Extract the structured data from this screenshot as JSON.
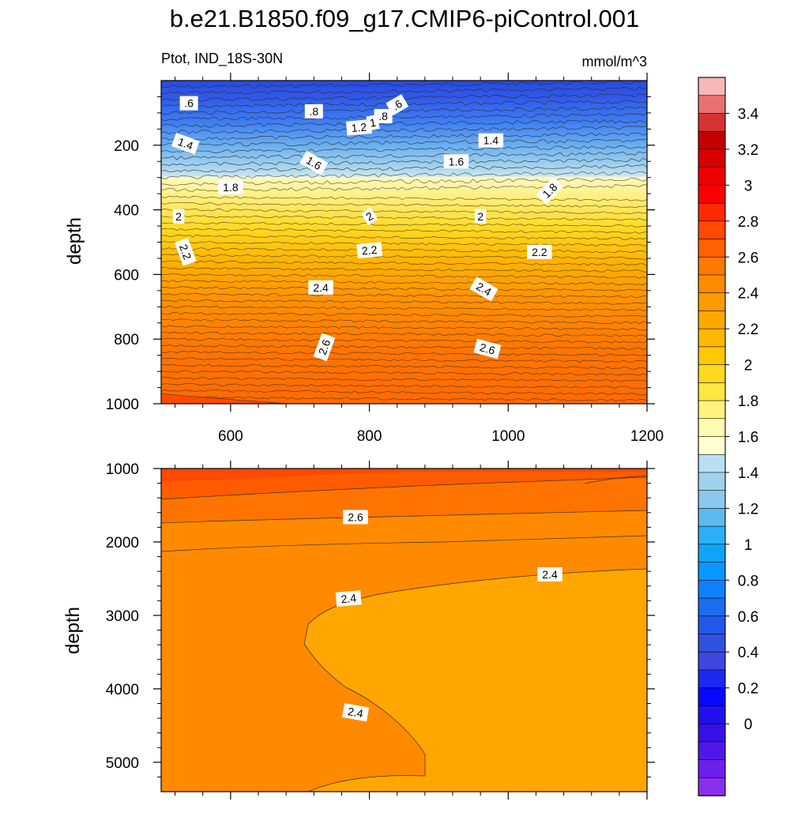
{
  "figure": {
    "title": "b.e21.B1850.f09_g17.CMIP6-piControl.001",
    "left_subtitle": "Ptot, IND_18S-30N",
    "right_subtitle": "mmol/m^3"
  },
  "chart_data": [
    {
      "type": "contour",
      "panel": "upper",
      "ylabel": "depth",
      "xlabel": "",
      "xlim": [
        500,
        1200
      ],
      "ylim": [
        1000,
        0
      ],
      "x_ticks": [
        "600",
        "800",
        "1000",
        "1200"
      ],
      "y_ticks": [
        "200",
        "400",
        "600",
        "800",
        "1000"
      ],
      "x_tick_values": [
        600,
        800,
        1000,
        1200
      ],
      "y_tick_values": [
        200,
        400,
        600,
        800,
        1000
      ],
      "contour_interval": 0.1,
      "contour_labels": [
        {
          "text": ".6",
          "x": 540,
          "y": 70
        },
        {
          "text": ".8",
          "x": 720,
          "y": 95
        },
        {
          "text": "1.2",
          "x": 785,
          "y": 145
        },
        {
          "text": "1",
          "x": 805,
          "y": 130
        },
        {
          "text": ".8",
          "x": 820,
          "y": 110
        },
        {
          "text": ".6",
          "x": 840,
          "y": 75
        },
        {
          "text": "1.4",
          "x": 535,
          "y": 195
        },
        {
          "text": "1.4",
          "x": 975,
          "y": 185
        },
        {
          "text": "1.6",
          "x": 720,
          "y": 255
        },
        {
          "text": "1.6",
          "x": 925,
          "y": 250
        },
        {
          "text": "1.8",
          "x": 600,
          "y": 330
        },
        {
          "text": "1.8",
          "x": 1060,
          "y": 340
        },
        {
          "text": "2",
          "x": 525,
          "y": 420
        },
        {
          "text": "2",
          "x": 800,
          "y": 420
        },
        {
          "text": "2",
          "x": 960,
          "y": 420
        },
        {
          "text": "2.2",
          "x": 535,
          "y": 530
        },
        {
          "text": "2.2",
          "x": 800,
          "y": 525
        },
        {
          "text": "2.2",
          "x": 1045,
          "y": 530
        },
        {
          "text": "2.4",
          "x": 730,
          "y": 640
        },
        {
          "text": "2.4",
          "x": 965,
          "y": 645
        },
        {
          "text": "2.6",
          "x": 735,
          "y": 825
        },
        {
          "text": "2.6",
          "x": 970,
          "y": 830
        }
      ],
      "levels_by_depth": [
        {
          "depth": 0,
          "value": 0.45
        },
        {
          "depth": 40,
          "value": 0.55
        },
        {
          "depth": 60,
          "value": 0.6
        },
        {
          "depth": 100,
          "value": 0.9
        },
        {
          "depth": 140,
          "value": 1.2
        },
        {
          "depth": 170,
          "value": 1.35
        },
        {
          "depth": 210,
          "value": 1.45
        },
        {
          "depth": 250,
          "value": 1.6
        },
        {
          "depth": 280,
          "value": 1.7
        },
        {
          "depth": 300,
          "value": 1.8
        },
        {
          "depth": 360,
          "value": 1.9
        },
        {
          "depth": 420,
          "value": 2.0
        },
        {
          "depth": 480,
          "value": 2.1
        },
        {
          "depth": 540,
          "value": 2.2
        },
        {
          "depth": 600,
          "value": 2.3
        },
        {
          "depth": 680,
          "value": 2.4
        },
        {
          "depth": 760,
          "value": 2.5
        },
        {
          "depth": 850,
          "value": 2.6
        },
        {
          "depth": 1000,
          "value": 2.65
        }
      ]
    },
    {
      "type": "contour",
      "panel": "lower",
      "ylabel": "depth",
      "xlabel": "",
      "xlim": [
        500,
        1200
      ],
      "ylim": [
        5400,
        1000
      ],
      "y_ticks": [
        "1000",
        "2000",
        "3000",
        "4000",
        "5000"
      ],
      "y_tick_values": [
        1000,
        2000,
        3000,
        4000,
        5000
      ],
      "x_tick_values": [
        600,
        800,
        1000,
        1200
      ],
      "contour_labels": [
        {
          "text": "2.6",
          "x": 780,
          "y": 1660
        },
        {
          "text": "2.4",
          "x": 770,
          "y": 2770
        },
        {
          "text": "2.4",
          "x": 1060,
          "y": 2440
        },
        {
          "text": "2.4",
          "x": 780,
          "y": 4320
        }
      ],
      "regions": [
        {
          "value": 2.8,
          "description": "top band"
        },
        {
          "value": 2.7,
          "description": "upper band"
        },
        {
          "value": 2.6,
          "description": "middle band"
        },
        {
          "value": 2.5,
          "description": "western deep water"
        },
        {
          "value": 2.4,
          "description": "eastern deep water"
        }
      ]
    }
  ],
  "colorbar": {
    "labels": [
      "3.4",
      "3.2",
      "3",
      "2.8",
      "2.6",
      "2.4",
      "2.2",
      "2",
      "1.8",
      "1.6",
      "1.4",
      "1.2",
      "1",
      "0.8",
      "0.6",
      "0.4",
      "0.2",
      "0"
    ],
    "colors_top_to_bottom": [
      "#f9b8b8",
      "#e87070",
      "#d63232",
      "#c40000",
      "#d80000",
      "#ec0000",
      "#ff0000",
      "#ff2800",
      "#ff4a00",
      "#ff6000",
      "#ff7800",
      "#ff8c00",
      "#ff9a00",
      "#ffa800",
      "#ffb800",
      "#ffc800",
      "#ffd820",
      "#ffe640",
      "#fff380",
      "#fffbb0",
      "#ffffd0",
      "#b8e0f0",
      "#a0d2ee",
      "#8cc8ee",
      "#5cbaf0",
      "#2ab0f8",
      "#10a4f8",
      "#0898ff",
      "#1080ff",
      "#1c6cf0",
      "#2058e8",
      "#3050e0",
      "#3e46e0",
      "#1c28f0",
      "#0808ff",
      "#2010f0",
      "#3810e8",
      "#5018e8",
      "#6c20ec",
      "#8a2ef0"
    ]
  }
}
